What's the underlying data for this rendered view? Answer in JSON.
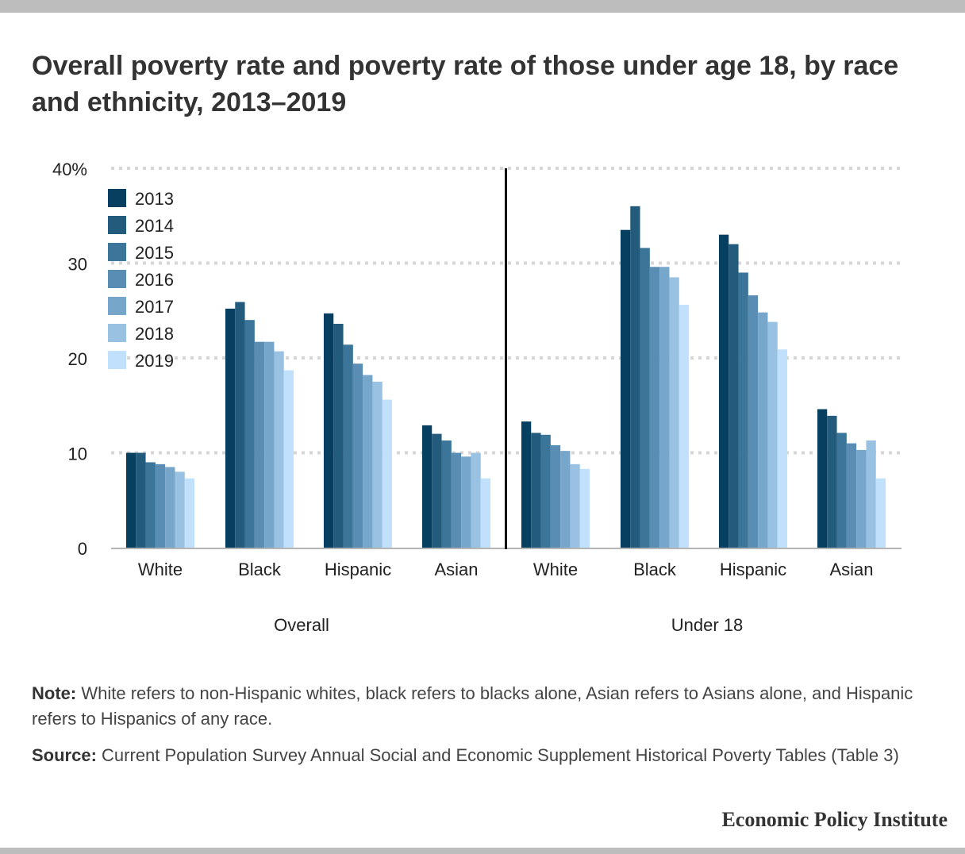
{
  "title": "Overall poverty rate and poverty rate of those under age 18, by race and ethnicity, 2013–2019",
  "note_label": "Note:",
  "note_text": "White refers to non-Hispanic whites, black refers to blacks alone, Asian refers to Asians alone, and Hispanic refers to Hispanics of any race.",
  "source_label": "Source:",
  "source_text": "Current Population Survey Annual Social and Economic Supplement Historical Poverty Tables (Table 3)",
  "brand": "Economic Policy Institute",
  "colors": {
    "2013": "#073f61",
    "2014": "#235b7d",
    "2015": "#3b7599",
    "2016": "#5a8db3",
    "2017": "#77a6cb",
    "2018": "#98c1e2",
    "2019": "#c0e0fb"
  },
  "chart_data": {
    "type": "bar",
    "ylim": [
      0,
      40
    ],
    "yticks": [
      0,
      10,
      20,
      30,
      40
    ],
    "ytick_labels": [
      "0",
      "10",
      "20",
      "30",
      "40%"
    ],
    "legend_placement": "top-left",
    "grid": true,
    "groups": [
      {
        "label": "Overall",
        "categories": [
          "White",
          "Black",
          "Hispanic",
          "Asian"
        ],
        "series": [
          {
            "name": "2013",
            "values": [
              10.0,
              25.2,
              24.7,
              12.9
            ]
          },
          {
            "name": "2014",
            "values": [
              10.0,
              25.9,
              23.6,
              12.0
            ]
          },
          {
            "name": "2015",
            "values": [
              9.0,
              24.0,
              21.4,
              11.3
            ]
          },
          {
            "name": "2016",
            "values": [
              8.8,
              21.7,
              19.4,
              10.0
            ]
          },
          {
            "name": "2017",
            "values": [
              8.5,
              21.7,
              18.2,
              9.6
            ]
          },
          {
            "name": "2018",
            "values": [
              8.0,
              20.7,
              17.5,
              10.0
            ]
          },
          {
            "name": "2019",
            "values": [
              7.3,
              18.7,
              15.6,
              7.3
            ]
          }
        ]
      },
      {
        "label": "Under 18",
        "categories": [
          "White",
          "Black",
          "Hispanic",
          "Asian"
        ],
        "series": [
          {
            "name": "2013",
            "values": [
              13.3,
              33.5,
              33.0,
              14.6
            ]
          },
          {
            "name": "2014",
            "values": [
              12.1,
              36.0,
              32.0,
              13.9
            ]
          },
          {
            "name": "2015",
            "values": [
              11.9,
              31.6,
              29.0,
              12.1
            ]
          },
          {
            "name": "2016",
            "values": [
              10.8,
              29.6,
              26.6,
              11.0
            ]
          },
          {
            "name": "2017",
            "values": [
              10.2,
              29.6,
              24.8,
              10.3
            ]
          },
          {
            "name": "2018",
            "values": [
              8.8,
              28.5,
              23.8,
              11.3
            ]
          },
          {
            "name": "2019",
            "values": [
              8.3,
              25.6,
              20.9,
              7.3
            ]
          }
        ]
      }
    ]
  }
}
